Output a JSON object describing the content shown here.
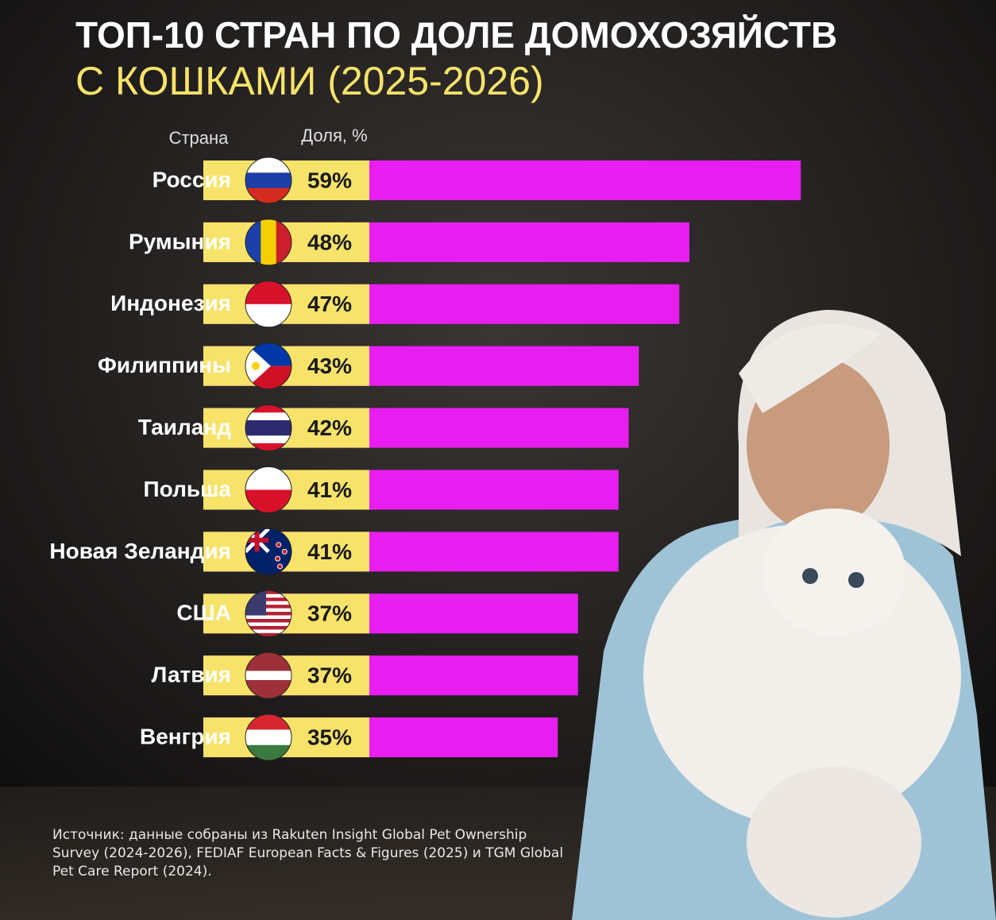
{
  "chart_data": {
    "type": "bar",
    "title": "ТОП-10 СТРАН ПО ДОЛЕ ДОМОХОЗЯЙСТВ",
    "subtitle": "С КОШКАМИ (2025-2026)",
    "category_header": "Страна",
    "value_header": "Доля, %",
    "categories": [
      "Россия",
      "Румыния",
      "Индонезия",
      "Филиппины",
      "Таиланд",
      "Польша",
      "Новая Зеландия",
      "США",
      "Латвия",
      "Венгрия"
    ],
    "values": [
      59,
      48,
      47,
      43,
      42,
      41,
      41,
      37,
      37,
      35
    ],
    "value_labels": [
      "59%",
      "48%",
      "47%",
      "43%",
      "42%",
      "41%",
      "41%",
      "37%",
      "37%",
      "35%"
    ],
    "color": "#e81ef0",
    "label_color": "#f7e36a",
    "source": "Источник: данные собраны из Rakuten Insight Global Pet Ownership Survey (2024-2026), FEDIAF European Facts & Figures (2025) и TGM Global Pet Care Report (2024)."
  }
}
